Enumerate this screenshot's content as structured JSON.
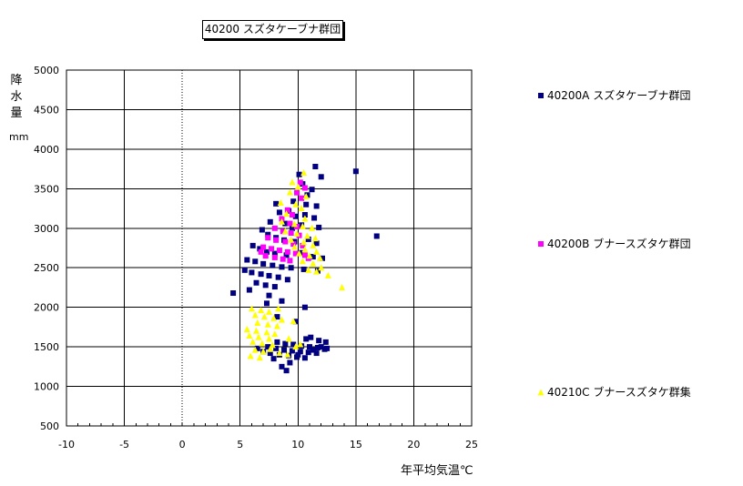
{
  "chart_data": {
    "type": "scatter",
    "title": "40200 スズタケーブナ群団",
    "ylabel_chars": [
      "降",
      "水",
      "量"
    ],
    "ylabel_unit": "mm",
    "xlabel": "年平均気温℃",
    "xlim": [
      -10,
      25
    ],
    "ylim": [
      500,
      5000
    ],
    "x_ticks": [
      -10,
      -5,
      0,
      5,
      10,
      15,
      20,
      25
    ],
    "x_tick_labels": [
      "-10",
      "-5",
      "0",
      "5",
      "10",
      "15",
      "20",
      "25"
    ],
    "y_ticks": [
      500,
      1000,
      1500,
      2000,
      2500,
      3000,
      3500,
      4000,
      4500,
      5000
    ],
    "y_tick_labels": [
      "500",
      "1000",
      "1500",
      "2000",
      "2500",
      "3000",
      "3500",
      "4000",
      "4500",
      "5000"
    ],
    "grid": true,
    "legend_position": "right",
    "series": [
      {
        "name": "40200A スズタケーブナ群団",
        "marker": "square",
        "color": "#000080",
        "points": [
          [
            15.0,
            3720
          ],
          [
            16.8,
            2900
          ],
          [
            4.4,
            2180
          ],
          [
            11.5,
            3780
          ],
          [
            12.0,
            3650
          ],
          [
            10.1,
            3680
          ],
          [
            10.4,
            3560
          ],
          [
            11.2,
            3490
          ],
          [
            10.8,
            3420
          ],
          [
            9.6,
            3340
          ],
          [
            10.7,
            3300
          ],
          [
            11.6,
            3280
          ],
          [
            8.1,
            3310
          ],
          [
            8.4,
            3200
          ],
          [
            9.2,
            3220
          ],
          [
            9.8,
            3150
          ],
          [
            10.6,
            3170
          ],
          [
            11.4,
            3130
          ],
          [
            7.6,
            3080
          ],
          [
            8.9,
            3060
          ],
          [
            9.5,
            3000
          ],
          [
            10.3,
            3040
          ],
          [
            11.8,
            3010
          ],
          [
            6.9,
            2980
          ],
          [
            7.4,
            2920
          ],
          [
            8.1,
            2880
          ],
          [
            8.8,
            2850
          ],
          [
            9.7,
            2830
          ],
          [
            10.9,
            2860
          ],
          [
            11.6,
            2810
          ],
          [
            6.1,
            2780
          ],
          [
            6.7,
            2740
          ],
          [
            7.3,
            2700
          ],
          [
            8.0,
            2680
          ],
          [
            9.0,
            2660
          ],
          [
            10.2,
            2690
          ],
          [
            11.3,
            2640
          ],
          [
            12.1,
            2620
          ],
          [
            5.6,
            2600
          ],
          [
            6.3,
            2580
          ],
          [
            7.0,
            2550
          ],
          [
            7.8,
            2530
          ],
          [
            8.6,
            2510
          ],
          [
            9.4,
            2500
          ],
          [
            10.5,
            2480
          ],
          [
            11.7,
            2460
          ],
          [
            5.4,
            2470
          ],
          [
            6.0,
            2440
          ],
          [
            6.8,
            2420
          ],
          [
            7.5,
            2400
          ],
          [
            8.3,
            2380
          ],
          [
            9.1,
            2350
          ],
          [
            6.4,
            2310
          ],
          [
            7.2,
            2280
          ],
          [
            8.0,
            2260
          ],
          [
            5.8,
            2220
          ],
          [
            7.5,
            2150
          ],
          [
            8.6,
            2080
          ],
          [
            7.3,
            2050
          ],
          [
            10.6,
            2000
          ],
          [
            8.2,
            1880
          ],
          [
            9.8,
            1820
          ],
          [
            10.7,
            1600
          ],
          [
            11.1,
            1620
          ],
          [
            11.8,
            1580
          ],
          [
            12.4,
            1560
          ],
          [
            8.2,
            1560
          ],
          [
            8.9,
            1540
          ],
          [
            9.6,
            1530
          ],
          [
            10.3,
            1510
          ],
          [
            11.0,
            1500
          ],
          [
            11.7,
            1490
          ],
          [
            12.5,
            1480
          ],
          [
            7.4,
            1500
          ],
          [
            8.1,
            1480
          ],
          [
            8.8,
            1460
          ],
          [
            9.5,
            1450
          ],
          [
            10.2,
            1440
          ],
          [
            10.9,
            1430
          ],
          [
            11.6,
            1420
          ],
          [
            12.3,
            1470
          ],
          [
            7.6,
            1420
          ],
          [
            8.4,
            1400
          ],
          [
            9.2,
            1390
          ],
          [
            9.9,
            1370
          ],
          [
            10.6,
            1360
          ],
          [
            6.5,
            1480
          ],
          [
            7.0,
            1440
          ],
          [
            9.3,
            1300
          ],
          [
            9.0,
            1200
          ],
          [
            8.6,
            1250
          ],
          [
            7.9,
            1350
          ],
          [
            10.0,
            1400
          ],
          [
            12.0,
            1500
          ],
          [
            11.3,
            1460
          ]
        ]
      },
      {
        "name": "40200B ブナースズタケ群団",
        "marker": "square",
        "color": "#ff00ff",
        "points": [
          [
            10.2,
            3580
          ],
          [
            10.6,
            3510
          ],
          [
            9.9,
            3450
          ],
          [
            10.3,
            3380
          ],
          [
            9.1,
            3230
          ],
          [
            9.5,
            3170
          ],
          [
            8.6,
            3120
          ],
          [
            9.3,
            3060
          ],
          [
            9.9,
            3020
          ],
          [
            8.0,
            3000
          ],
          [
            8.7,
            2960
          ],
          [
            9.4,
            2940
          ],
          [
            10.1,
            2910
          ],
          [
            7.4,
            2880
          ],
          [
            8.1,
            2850
          ],
          [
            8.9,
            2830
          ],
          [
            9.6,
            2800
          ],
          [
            10.4,
            2780
          ],
          [
            7.0,
            2760
          ],
          [
            7.7,
            2740
          ],
          [
            8.4,
            2720
          ],
          [
            9.1,
            2700
          ],
          [
            9.8,
            2680
          ],
          [
            10.6,
            2660
          ],
          [
            7.2,
            2650
          ],
          [
            8.0,
            2630
          ],
          [
            8.7,
            2610
          ],
          [
            9.3,
            2590
          ],
          [
            6.8,
            2700
          ],
          [
            10.9,
            2620
          ]
        ]
      },
      {
        "name": "40210C ブナースズタケ群集",
        "marker": "triangle",
        "color": "#ffff00",
        "points": [
          [
            10.5,
            3700
          ],
          [
            9.5,
            3580
          ],
          [
            10.0,
            3520
          ],
          [
            9.3,
            3450
          ],
          [
            10.7,
            3400
          ],
          [
            8.5,
            3320
          ],
          [
            9.8,
            3300
          ],
          [
            10.3,
            3250
          ],
          [
            9.0,
            3180
          ],
          [
            10.6,
            3120
          ],
          [
            8.6,
            3080
          ],
          [
            9.7,
            3050
          ],
          [
            10.4,
            3020
          ],
          [
            11.2,
            3000
          ],
          [
            8.9,
            2960
          ],
          [
            9.9,
            2930
          ],
          [
            10.8,
            2900
          ],
          [
            11.5,
            2870
          ],
          [
            9.4,
            2850
          ],
          [
            10.5,
            2820
          ],
          [
            11.3,
            2780
          ],
          [
            9.7,
            2760
          ],
          [
            10.6,
            2730
          ],
          [
            11.6,
            2700
          ],
          [
            10.1,
            2680
          ],
          [
            11.0,
            2650
          ],
          [
            11.9,
            2620
          ],
          [
            10.4,
            2580
          ],
          [
            11.3,
            2550
          ],
          [
            12.0,
            2500
          ],
          [
            10.9,
            2470
          ],
          [
            11.6,
            2450
          ],
          [
            12.6,
            2400
          ],
          [
            13.8,
            2250
          ],
          [
            6.0,
            1980
          ],
          [
            6.8,
            1960
          ],
          [
            7.5,
            1940
          ],
          [
            8.3,
            1980
          ],
          [
            6.3,
            1900
          ],
          [
            7.1,
            1880
          ],
          [
            7.9,
            1860
          ],
          [
            8.6,
            1840
          ],
          [
            9.6,
            1820
          ],
          [
            6.5,
            1800
          ],
          [
            7.4,
            1780
          ],
          [
            8.2,
            1760
          ],
          [
            5.6,
            1720
          ],
          [
            6.4,
            1700
          ],
          [
            7.3,
            1680
          ],
          [
            8.0,
            1660
          ],
          [
            5.8,
            1640
          ],
          [
            6.6,
            1620
          ],
          [
            7.5,
            1600
          ],
          [
            9.2,
            1600
          ],
          [
            6.1,
            1560
          ],
          [
            6.9,
            1540
          ],
          [
            7.8,
            1520
          ],
          [
            10.2,
            1530
          ],
          [
            6.3,
            1460
          ],
          [
            7.0,
            1440
          ],
          [
            8.4,
            1420
          ],
          [
            9.1,
            1400
          ],
          [
            5.9,
            1380
          ],
          [
            6.7,
            1360
          ],
          [
            7.6,
            1470
          ],
          [
            9.8,
            1500
          ]
        ]
      }
    ]
  }
}
